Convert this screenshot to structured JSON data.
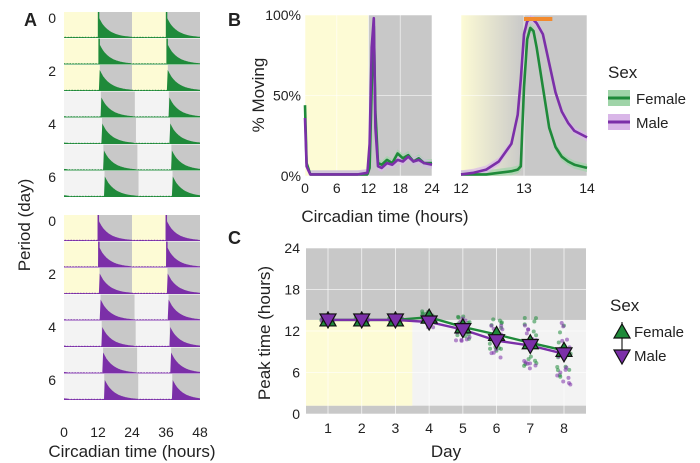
{
  "panels": {
    "a": "A",
    "b": "B",
    "c": "C"
  },
  "colors": {
    "female": "#1f8a3a",
    "male": "#7b2fa8",
    "light": "#fdfbd5",
    "dark": "#c8c8c8",
    "plotbg": "#f3f3f3",
    "bar": "#f28a2e"
  },
  "chart_data": [
    {
      "type": "area",
      "panel": "A",
      "title": "",
      "xlabel": "Circadian time (hours)",
      "ylabel": "Period (day)",
      "xticks": [
        "0",
        "12",
        "24",
        "36",
        "48"
      ],
      "yticks": [
        "0",
        "2",
        "4",
        "6"
      ],
      "xlim": [
        0,
        48
      ],
      "days": [
        0,
        1,
        2,
        3,
        4,
        5,
        6
      ],
      "groups": [
        {
          "name": "Female",
          "onset_hours": [
            12.2,
            12.4,
            12.6,
            13.0,
            13.4,
            13.9,
            14.3
          ]
        },
        {
          "name": "Male",
          "onset_hours": [
            12.1,
            12.3,
            12.5,
            12.9,
            13.3,
            13.8,
            14.2
          ]
        }
      ]
    },
    {
      "type": "line",
      "panel": "B-left",
      "xlabel": "Circadian time (hours)",
      "ylabel": "% Moving",
      "xticks": [
        "0",
        "6",
        "12",
        "18",
        "24"
      ],
      "yticks": [
        "0%",
        "50%",
        "100%"
      ],
      "xlim": [
        0,
        24
      ],
      "ylim": [
        0,
        100
      ],
      "x": [
        0,
        0.3,
        1,
        2,
        4,
        6,
        8,
        10,
        11.8,
        12.2,
        12.6,
        13.0,
        13.3,
        13.8,
        14.5,
        15.5,
        16.5,
        17.5,
        18.5,
        19.5,
        20.5,
        21.5,
        22.5,
        24
      ],
      "series": [
        {
          "name": "Female",
          "values": [
            44,
            8,
            1,
            1,
            1,
            1,
            1,
            1,
            1,
            5,
            55,
            93,
            40,
            8,
            7,
            10,
            8,
            14,
            11,
            13,
            9,
            11,
            8,
            8
          ]
        },
        {
          "name": "Male",
          "values": [
            36,
            6,
            1,
            1,
            1,
            1,
            1,
            1,
            2,
            20,
            80,
            98,
            30,
            6,
            5,
            8,
            7,
            10,
            9,
            12,
            9,
            10,
            8,
            7
          ]
        }
      ]
    },
    {
      "type": "line",
      "panel": "B-right",
      "xticks": [
        "12",
        "13",
        "14"
      ],
      "xlim": [
        12,
        14
      ],
      "ylim": [
        0,
        100
      ],
      "x": [
        12,
        12.2,
        12.4,
        12.6,
        12.8,
        12.9,
        12.95,
        13.0,
        13.05,
        13.1,
        13.15,
        13.2,
        13.3,
        13.4,
        13.5,
        13.6,
        13.7,
        13.8,
        14.0
      ],
      "series": [
        {
          "name": "Female",
          "values": [
            1,
            1,
            1,
            2,
            3,
            4,
            6,
            55,
            85,
            92,
            90,
            80,
            55,
            30,
            18,
            12,
            9,
            7,
            5
          ]
        },
        {
          "name": "Male",
          "values": [
            1,
            2,
            4,
            9,
            20,
            38,
            60,
            88,
            96,
            98,
            97,
            95,
            88,
            70,
            52,
            40,
            33,
            28,
            24
          ]
        }
      ],
      "bar": [
        13.0,
        13.45
      ]
    },
    {
      "type": "scatter",
      "panel": "C",
      "xlabel": "Day",
      "ylabel": "Peak time (hours)",
      "xticks": [
        "1",
        "2",
        "3",
        "4",
        "5",
        "6",
        "7",
        "8"
      ],
      "yticks": [
        "0",
        "6",
        "12",
        "18",
        "24"
      ],
      "ylim": [
        0,
        24
      ],
      "x": [
        1,
        2,
        3,
        4,
        5,
        6,
        7,
        8
      ],
      "series": [
        {
          "name": "Female",
          "values": [
            13.6,
            13.6,
            13.6,
            14.0,
            12.6,
            11.5,
            10.3,
            9.2
          ]
        },
        {
          "name": "Male",
          "values": [
            13.6,
            13.6,
            13.6,
            13.3,
            12.2,
            10.6,
            9.9,
            8.7
          ]
        }
      ]
    }
  ],
  "legend": {
    "title": "Sex",
    "items": [
      "Female",
      "Male"
    ]
  }
}
